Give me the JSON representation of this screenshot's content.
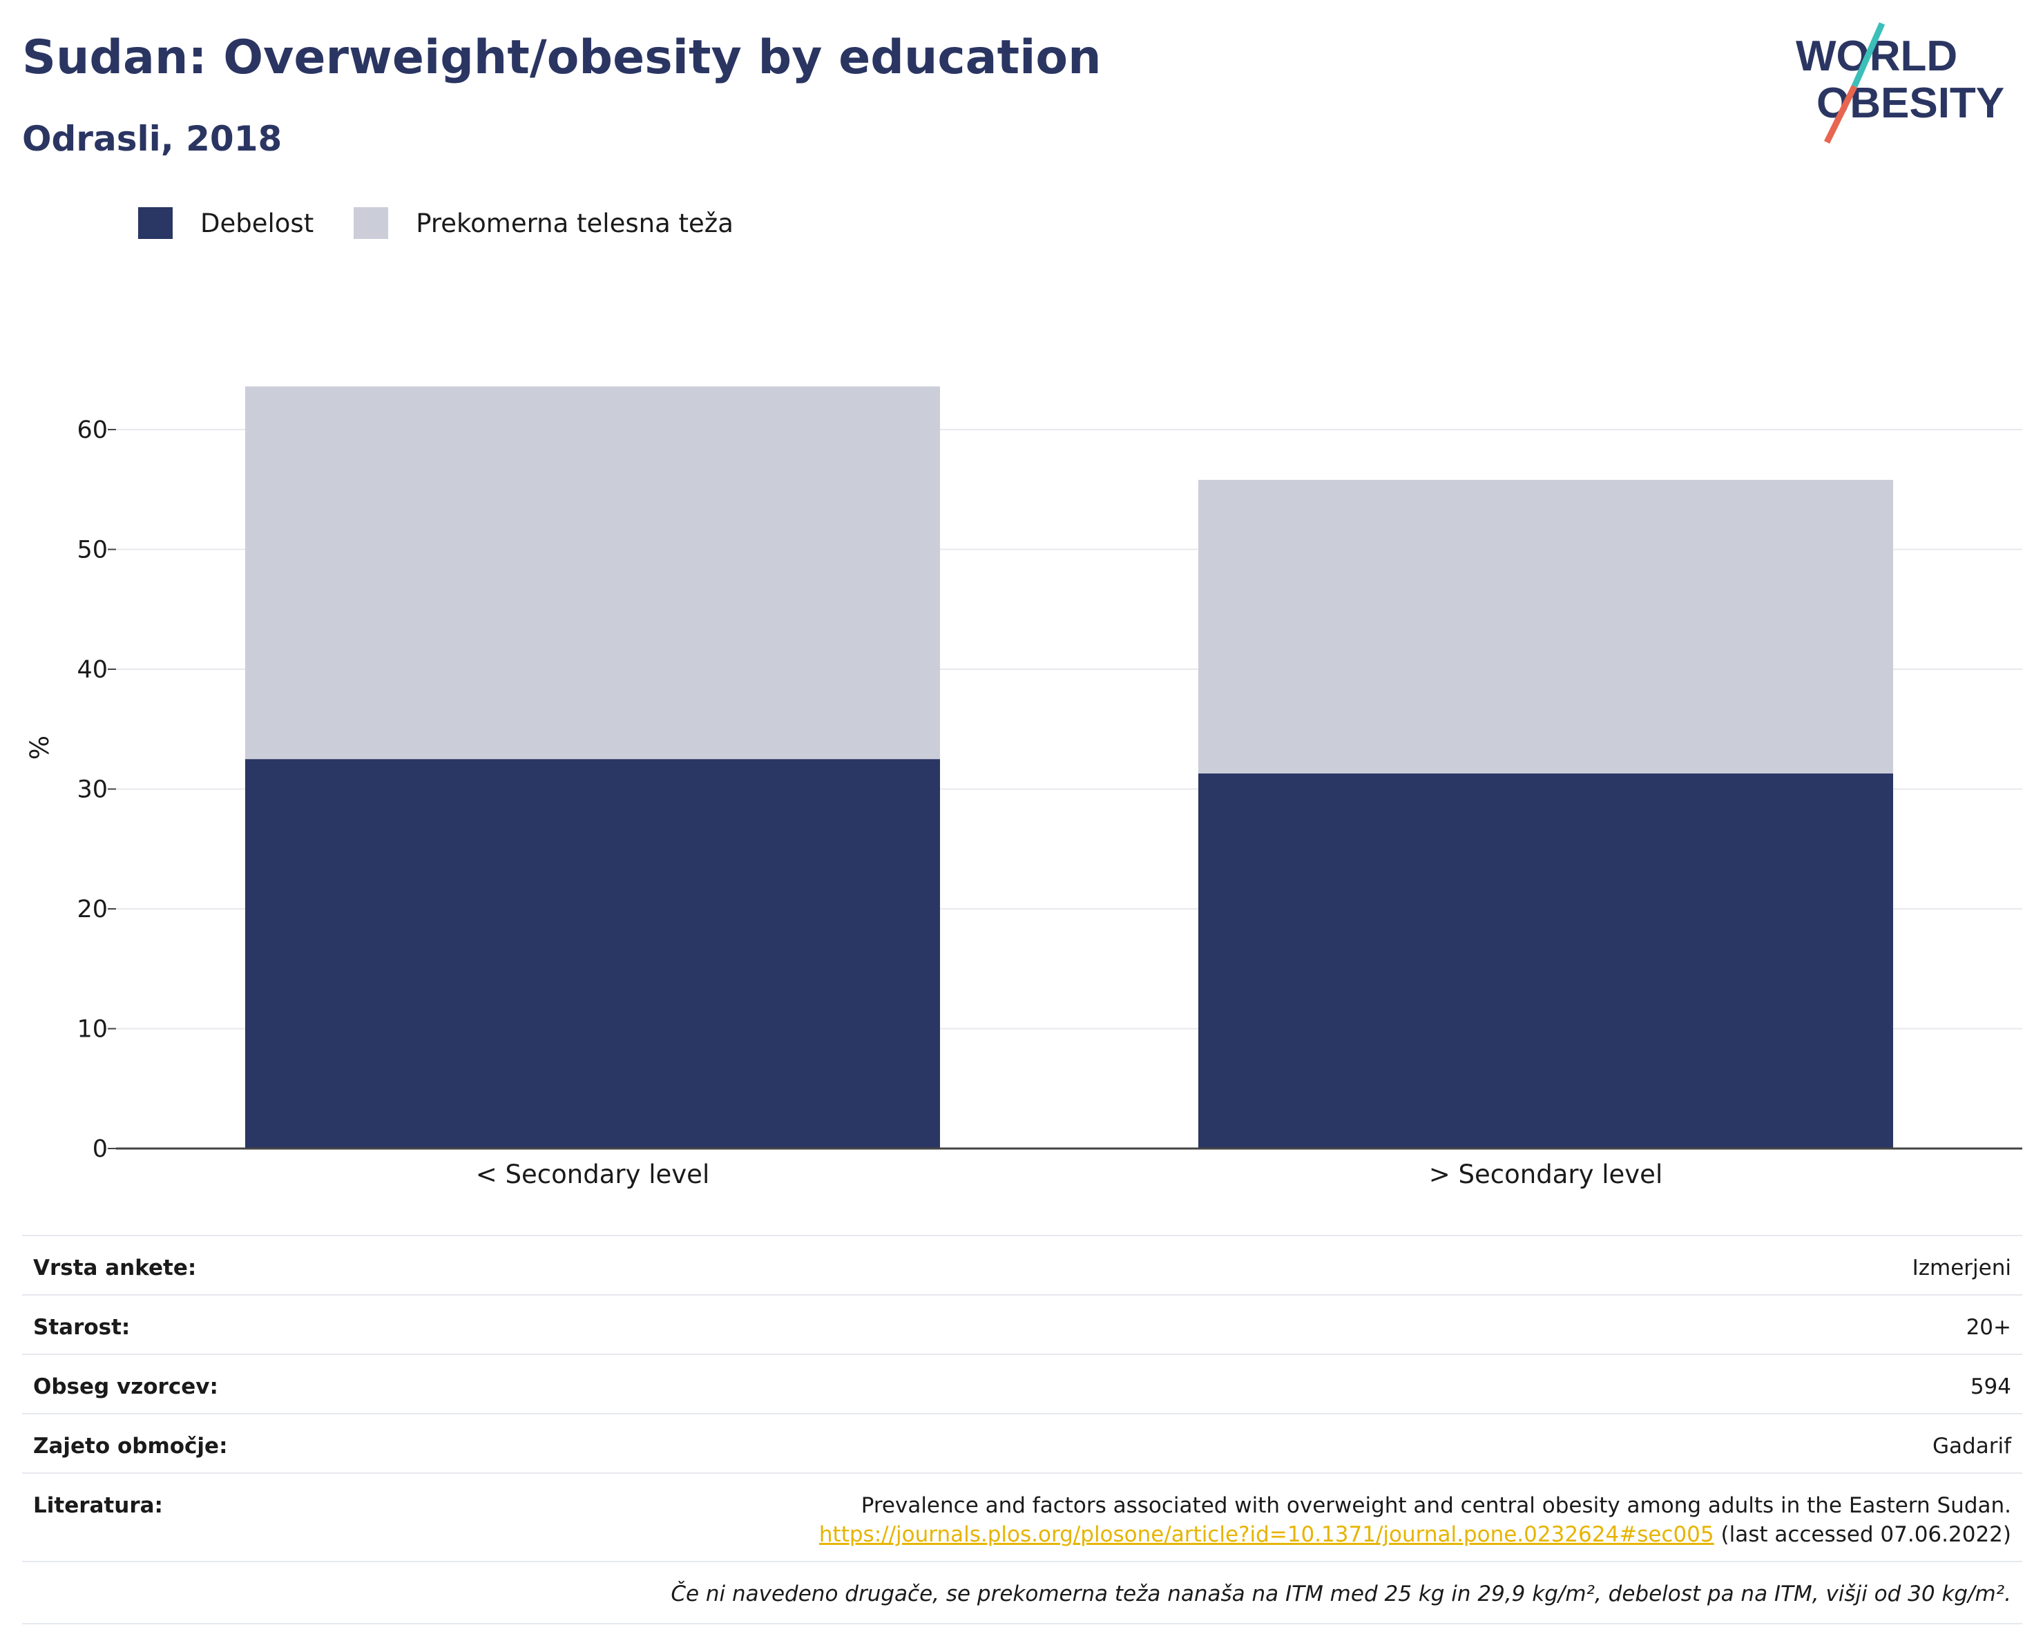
{
  "title": "Sudan: Overweight/obesity by education",
  "subtitle": "Odrasli, 2018",
  "logo": {
    "line1": "WORLD",
    "line2": "OBESITY"
  },
  "colors": {
    "obesity": "#2a3663",
    "overweight": "#cbcdd9",
    "title": "#2a3562",
    "link": "#e6b400",
    "logo_teal": "#3bbfb8",
    "logo_red": "#e8654f"
  },
  "legend": [
    {
      "label": "Debelost",
      "color": "#2a3663"
    },
    {
      "label": "Prekomerna telesna teža",
      "color": "#cbcdd9"
    }
  ],
  "chart_data": {
    "type": "bar",
    "stacked": true,
    "categories": [
      "< Secondary level",
      "> Secondary level"
    ],
    "series": [
      {
        "name": "Debelost",
        "values": [
          32.5,
          31.3
        ]
      },
      {
        "name": "Prekomerna telesna teža",
        "values": [
          31.1,
          24.5
        ]
      }
    ],
    "ylabel": "%",
    "ylim": [
      0,
      68
    ],
    "yticks": [
      0,
      10,
      20,
      30,
      40,
      50,
      60
    ],
    "grid": true,
    "legend_position": "top-left"
  },
  "meta": {
    "rows": [
      {
        "label": "Vrsta ankete:",
        "value": "Izmerjeni"
      },
      {
        "label": "Starost:",
        "value": "20+"
      },
      {
        "label": "Obseg vzorcev:",
        "value": "594"
      },
      {
        "label": "Zajeto območje:",
        "value": "Gadarif"
      }
    ],
    "reference": {
      "label": "Literatura:",
      "text": "Prevalence and factors associated with overweight and central obesity among adults in the Eastern Sudan.",
      "link": "https://journals.plos.org/plosone/article?id=10.1371/journal.pone.0232624#sec005",
      "accessed": "(last accessed 07.06.2022)"
    },
    "note": "Če ni navedeno drugače, se prekomerna teža nanaša na ITM med 25 kg in 29,9 kg/m², debelost pa na ITM, višji od 30 kg/m²."
  }
}
